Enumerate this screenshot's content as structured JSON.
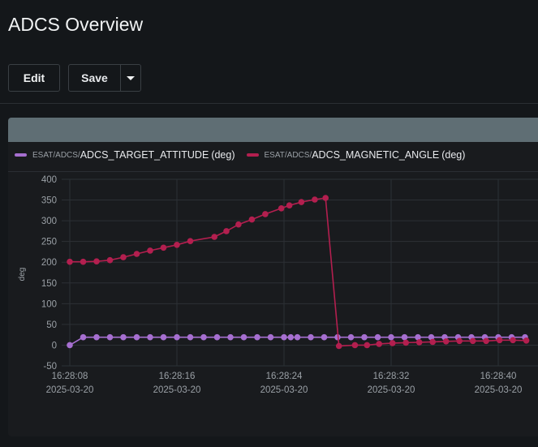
{
  "page": {
    "title": "ADCS Overview"
  },
  "toolbar": {
    "edit_label": "Edit",
    "save_label": "Save"
  },
  "legend": [
    {
      "prefix": "ESAT/ADCS/",
      "name": "ADCS_TARGET_ATTITUDE",
      "unit": "(deg)",
      "color": "#a66fd0"
    },
    {
      "prefix": "ESAT/ADCS/",
      "name": "ADCS_MAGNETIC_ANGLE",
      "unit": "(deg)",
      "color": "#b31f4f"
    }
  ],
  "chart_data": {
    "type": "line",
    "ylabel": "deg",
    "ylim": [
      -50,
      400
    ],
    "yticks": [
      -50,
      0,
      50,
      100,
      150,
      200,
      250,
      300,
      350,
      400
    ],
    "xlim": [
      0,
      35
    ],
    "x_unit": "seconds after 16:28:08 on 2025-03-20",
    "xticks": [
      {
        "x": 0,
        "time": "16:28:08",
        "date": "2025-03-20"
      },
      {
        "x": 8,
        "time": "16:28:16",
        "date": "2025-03-20"
      },
      {
        "x": 16,
        "time": "16:28:24",
        "date": "2025-03-20"
      },
      {
        "x": 24,
        "time": "16:28:32",
        "date": "2025-03-20"
      },
      {
        "x": 32,
        "time": "16:28:40",
        "date": "2025-03-20"
      }
    ],
    "grid": true,
    "legend_position": "top",
    "series": [
      {
        "name": "ESAT/ADCS/ADCS_TARGET_ATTITUDE (deg)",
        "color": "#a66fd0",
        "x": [
          0,
          1,
          2,
          3,
          4,
          5,
          6,
          7,
          8,
          9,
          10,
          11,
          12,
          13,
          14,
          15,
          16,
          16.5,
          17,
          18,
          19,
          20,
          21,
          22,
          23,
          24,
          25,
          26,
          27,
          28,
          29,
          30,
          31,
          32,
          33,
          34
        ],
        "y": [
          0,
          19,
          19,
          19,
          19,
          19,
          19,
          19,
          19,
          19,
          19,
          19,
          19,
          19,
          19,
          19,
          19,
          19,
          19,
          19,
          19,
          19,
          19,
          19,
          19,
          19,
          19,
          19,
          19,
          19,
          19,
          19,
          19,
          19,
          19,
          19
        ]
      },
      {
        "name": "ESAT/ADCS/ADCS_MAGNETIC_ANGLE (deg)",
        "color": "#b31f4f",
        "x": [
          0,
          1,
          2,
          3,
          4,
          5,
          6,
          7,
          8,
          9,
          10.8,
          11.7,
          12.6,
          13.6,
          14.6,
          15.8,
          16.4,
          17.3,
          18.3,
          19.1,
          20.1,
          21.3,
          22.2,
          23.1,
          24.1,
          25.1,
          26.1,
          27.1,
          28.1,
          29.1,
          30.1,
          31.1,
          32.1,
          33.1,
          34.1
        ],
        "y": [
          201,
          201,
          202,
          205,
          212,
          220,
          228,
          235,
          242,
          251,
          261,
          275,
          291,
          303,
          316,
          330,
          337,
          345,
          351,
          355,
          -2,
          0,
          0,
          3,
          5,
          6,
          7,
          8,
          9,
          10,
          10,
          10,
          12,
          12,
          11
        ]
      }
    ]
  }
}
